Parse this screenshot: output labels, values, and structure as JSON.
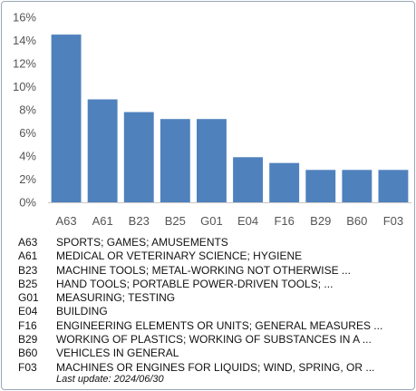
{
  "chart_data": {
    "type": "bar",
    "categories": [
      "A63",
      "A61",
      "B23",
      "B25",
      "G01",
      "E04",
      "F16",
      "B29",
      "B60",
      "F03"
    ],
    "values": [
      14.5,
      8.9,
      7.8,
      7.2,
      7.2,
      3.9,
      3.4,
      2.8,
      2.8,
      2.8
    ],
    "ylim": [
      0,
      16
    ],
    "yticks": [
      "0%",
      "2%",
      "4%",
      "6%",
      "8%",
      "10%",
      "12%",
      "14%",
      "16%"
    ],
    "grid": false,
    "bar_color": "#4f81bd"
  },
  "legend": [
    {
      "code": "A63",
      "desc": "SPORTS; GAMES; AMUSEMENTS"
    },
    {
      "code": "A61",
      "desc": "MEDICAL OR VETERINARY SCIENCE; HYGIENE"
    },
    {
      "code": "B23",
      "desc": "MACHINE TOOLS; METAL-WORKING NOT OTHERWISE ..."
    },
    {
      "code": "B25",
      "desc": "HAND TOOLS; PORTABLE POWER-DRIVEN TOOLS; ..."
    },
    {
      "code": "G01",
      "desc": "MEASURING; TESTING"
    },
    {
      "code": "E04",
      "desc": "BUILDING"
    },
    {
      "code": "F16",
      "desc": "ENGINEERING ELEMENTS OR UNITS; GENERAL MEASURES ..."
    },
    {
      "code": "B29",
      "desc": "WORKING OF PLASTICS; WORKING OF SUBSTANCES IN A ..."
    },
    {
      "code": "B60",
      "desc": "VEHICLES IN GENERAL"
    },
    {
      "code": "F03",
      "desc": "MACHINES OR ENGINES FOR LIQUIDS; WIND, SPRING, OR ..."
    }
  ],
  "last_update": "Last update:  2024/06/30"
}
